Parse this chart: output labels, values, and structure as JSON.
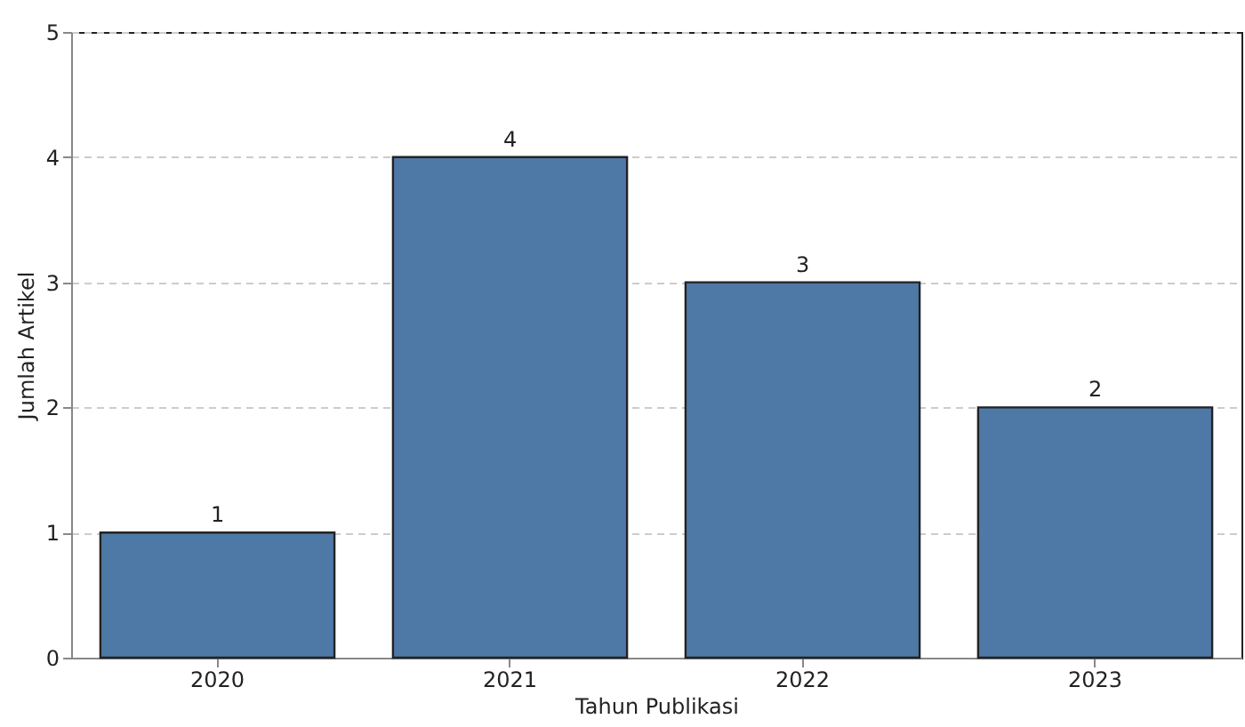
{
  "chart_data": {
    "type": "bar",
    "xlabel": "Tahun Publikasi",
    "ylabel": "Jumlah Artikel",
    "categories": [
      "2020",
      "2021",
      "2022",
      "2023"
    ],
    "values": [
      1,
      4,
      3,
      2
    ],
    "color": "#4e79a7",
    "ylim": [
      0,
      5
    ],
    "yticks": [
      0,
      1,
      2,
      3,
      4,
      5
    ],
    "grid": "y",
    "data_labels": true
  }
}
